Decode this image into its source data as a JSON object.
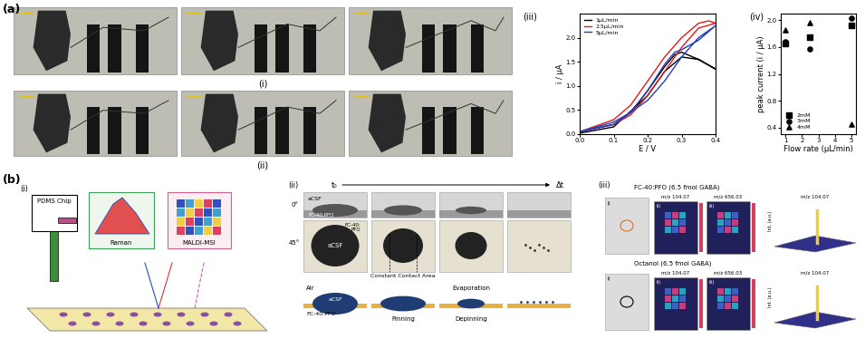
{
  "chart_data": [
    {
      "type": "line",
      "title": "(iii)",
      "x_label": "E / V",
      "y_label": "i / μA",
      "xlim": [
        0,
        0.4
      ],
      "xticks": [
        {
          "value": 0,
          "label": "0.0"
        },
        {
          "value": 0.1,
          "label": "0.1"
        },
        {
          "value": 0.2,
          "label": "0.2"
        },
        {
          "value": 0.3,
          "label": "0.3"
        },
        {
          "value": 0.4,
          "label": "0.4"
        }
      ],
      "ylim": [
        0,
        2.5
      ],
      "yticks": [
        {
          "value": 0,
          "label": "0.0"
        },
        {
          "value": 0.5,
          "label": "0.5"
        },
        {
          "value": 1,
          "label": "1.0"
        },
        {
          "value": 1.5,
          "label": "1.5"
        },
        {
          "value": 2,
          "label": "2.0"
        }
      ],
      "legend": "upper left",
      "series": [
        {
          "name": "1μL/min",
          "color": "#000000",
          "x": [
            0,
            0.1,
            0.15,
            0.2,
            0.25,
            0.28,
            0.3,
            0.35,
            0.4,
            0.35,
            0.3,
            0.25,
            0.2,
            0.1,
            0
          ],
          "values": [
            0.05,
            0.2,
            0.45,
            0.9,
            1.4,
            1.65,
            1.7,
            1.55,
            1.35,
            1.55,
            1.6,
            1.3,
            0.8,
            0.15,
            0.02
          ]
        },
        {
          "name": "2.5μL/min",
          "color": "#e31a1c",
          "x": [
            0,
            0.1,
            0.15,
            0.2,
            0.25,
            0.3,
            0.35,
            0.38,
            0.4,
            0.35,
            0.3,
            0.25,
            0.2,
            0.15,
            0.1,
            0
          ],
          "values": [
            0.05,
            0.3,
            0.6,
            1.1,
            1.6,
            2.0,
            2.3,
            2.35,
            2.3,
            2.2,
            1.8,
            1.3,
            0.8,
            0.4,
            0.2,
            0.05
          ]
        },
        {
          "name": "5μL/min",
          "color": "#1f3fbf",
          "x": [
            0,
            0.1,
            0.15,
            0.2,
            0.25,
            0.28,
            0.3,
            0.35,
            0.4,
            0.35,
            0.3,
            0.25,
            0.2,
            0.1,
            0
          ],
          "values": [
            0.05,
            0.25,
            0.45,
            0.9,
            1.45,
            1.7,
            1.75,
            1.95,
            2.25,
            2.0,
            1.6,
            1.1,
            0.7,
            0.2,
            0.05
          ]
        }
      ]
    },
    {
      "type": "scatter",
      "title": "(iv)",
      "x_label": "Flow rate (μL/min)",
      "y_label": "peak current (i / μA)",
      "xlim": [
        0.7,
        5.3
      ],
      "xticks": [
        1,
        2,
        3,
        4,
        5
      ],
      "ylim": [
        0.3,
        2.1
      ],
      "yticks": [
        {
          "value": 0.4,
          "label": "0.4"
        },
        {
          "value": 0.8,
          "label": "0.8"
        },
        {
          "value": 1.2,
          "label": "1.2"
        },
        {
          "value": 1.6,
          "label": "1.6"
        },
        {
          "value": 2,
          "label": "2.0"
        }
      ],
      "legend": "lower left",
      "x": [
        1,
        2.5,
        5
      ],
      "series": [
        {
          "name": "2mM",
          "color": "#000000",
          "marker": "square",
          "values": [
            1.65,
            1.75,
            1.92
          ]
        },
        {
          "name": "3mM",
          "color": "#000000",
          "marker": "circle",
          "values": [
            1.68,
            1.57,
            2.03
          ]
        },
        {
          "name": "4mM",
          "color": "#000000",
          "marker": "triangle",
          "values": [
            1.85,
            1.97,
            0.45
          ]
        }
      ]
    }
  ],
  "figure": {
    "panel_a": {
      "label": "(a)",
      "photo_rows": [
        "(i)",
        "(ii)"
      ]
    },
    "panel_b": {
      "label": "(b)",
      "i": {
        "label": "(i)",
        "chip": "PDMS Chip",
        "raman": "Raman",
        "maldi": "MALDI-MSI"
      },
      "ii": {
        "label": "(ii)",
        "t_start": "t₀",
        "t_end": "Δt",
        "angles": [
          "0°",
          "45°"
        ],
        "drop": "aCSF",
        "oil": "FC-40:PFO",
        "oil_45": "FC-40:\nPFO",
        "contact": "Constant Contact Area",
        "air": "Air",
        "stages": [
          "Pinning",
          "Evaporation",
          "Depinning"
        ]
      },
      "iii": {
        "label": "(iii)",
        "rows": [
          "FC-40:PFO (6.5 fmol GABA)",
          "Octanol (6.5 fmol GABA)"
        ],
        "sub": [
          "i)",
          "ii)",
          "iii)"
        ],
        "mz": [
          "m/z 104.07",
          "m/z 656.03",
          "m/z 104.07"
        ],
        "colorbar_label": "Int. (a.u.)"
      }
    }
  }
}
